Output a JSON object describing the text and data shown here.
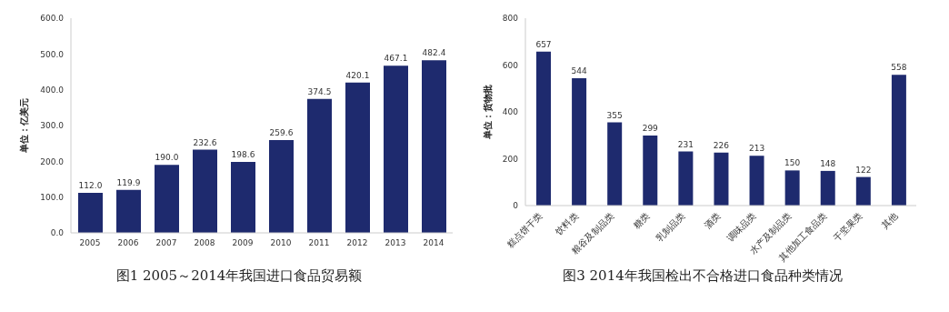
{
  "chart_data": [
    {
      "type": "bar",
      "title": "图1 2005～2014年我国进口食品贸易额",
      "ylabel": "单位：亿美元",
      "categories": [
        "2005",
        "2006",
        "2007",
        "2008",
        "2009",
        "2010",
        "2011",
        "2012",
        "2013",
        "2014"
      ],
      "values": [
        112.0,
        119.9,
        190.0,
        232.6,
        198.6,
        259.6,
        374.5,
        420.1,
        467.1,
        482.4
      ],
      "value_labels": [
        "112.0",
        "119.9",
        "190.0",
        "232.6",
        "198.6",
        "259.6",
        "374.5",
        "420.1",
        "467.1",
        "482.4"
      ],
      "color": "#1e2a6e",
      "ylim": [
        0,
        600
      ],
      "yticks": [
        {
          "value": 0,
          "label": "0.0"
        },
        {
          "value": 100,
          "label": "100.0"
        },
        {
          "value": 200,
          "label": "200.0"
        },
        {
          "value": 300,
          "label": "300.0"
        },
        {
          "value": 400,
          "label": "400.0"
        },
        {
          "value": 500,
          "label": "500.0"
        },
        {
          "value": 600,
          "label": "600.0"
        }
      ]
    },
    {
      "type": "bar",
      "title": "图3 2014年我国检出不合格进口食品种类情况",
      "ylabel": "单位：货物批",
      "categories": [
        "糕点饼干类",
        "饮料类",
        "粮谷及制品类",
        "糖类",
        "乳制品类",
        "酒类",
        "调味品类",
        "水产及制品类",
        "其他加工食品类",
        "干坚果类",
        "其他"
      ],
      "values": [
        657,
        544,
        355,
        299,
        231,
        226,
        213,
        150,
        148,
        122,
        558
      ],
      "data_labels": true,
      "color": "#1e2a6e",
      "ylim": [
        0,
        800
      ],
      "yticks": [
        0,
        200,
        400,
        600,
        800
      ]
    }
  ]
}
